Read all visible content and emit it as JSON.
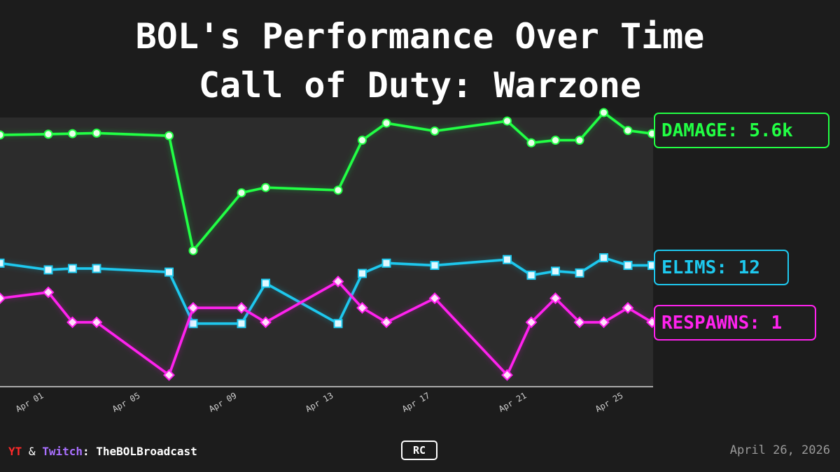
{
  "title_line1": "BOL's Performance Over Time",
  "title_line2": "Call of Duty: Warzone",
  "footer": {
    "yt": "YT",
    "amp": "&",
    "twitch": "Twitch",
    "colon": ":",
    "channel": "TheBOLBroadcast",
    "badge": "RC",
    "date": "April 26, 2026"
  },
  "chart_data": {
    "type": "line",
    "title": "BOL's Performance Over Time",
    "subtitle": "Call of Duty: Warzone",
    "x_tick_labels": [
      "Apr 01",
      "Apr 05",
      "Apr 09",
      "Apr 13",
      "Apr 17",
      "Apr 21",
      "Apr 25"
    ],
    "x": [
      "2026-03-30",
      "2026-04-01",
      "2026-04-02",
      "2026-04-03",
      "2026-04-06",
      "2026-04-07",
      "2026-04-09",
      "2026-04-10",
      "2026-04-13",
      "2026-04-14",
      "2026-04-15",
      "2026-04-17",
      "2026-04-20",
      "2026-04-21",
      "2026-04-22",
      "2026-04-23",
      "2026-04-24",
      "2026-04-25",
      "2026-04-26"
    ],
    "series": [
      {
        "key": "damage",
        "label": "DAMAGE: 5.6k",
        "color": "#22ff44",
        "marker": "circle",
        "values": [
          5.55,
          5.58,
          5.6,
          5.62,
          5.52,
          1.15,
          3.35,
          3.55,
          3.45,
          5.35,
          6.0,
          5.7,
          6.08,
          5.25,
          5.35,
          5.35,
          6.4,
          5.72,
          5.6
        ]
      },
      {
        "key": "elims",
        "label": "ELIMS: 12",
        "color": "#1ec8ee",
        "marker": "square",
        "values": [
          12.5,
          11.0,
          11.3,
          11.3,
          10.5,
          -1.0,
          -1.0,
          8.0,
          -1.0,
          10.2,
          12.5,
          12.0,
          13.3,
          9.8,
          10.7,
          10.3,
          13.7,
          12.0,
          12.0
        ]
      },
      {
        "key": "respawns",
        "label": "RESPAWNS: 1",
        "color": "#ff22ee",
        "marker": "diamond",
        "values": [
          2.0,
          2.25,
          1.0,
          1.0,
          -1.2,
          1.6,
          1.6,
          1.0,
          2.7,
          1.6,
          1.0,
          2.0,
          -1.2,
          1.0,
          2.0,
          1.0,
          1.0,
          1.6,
          1.0
        ]
      }
    ]
  }
}
